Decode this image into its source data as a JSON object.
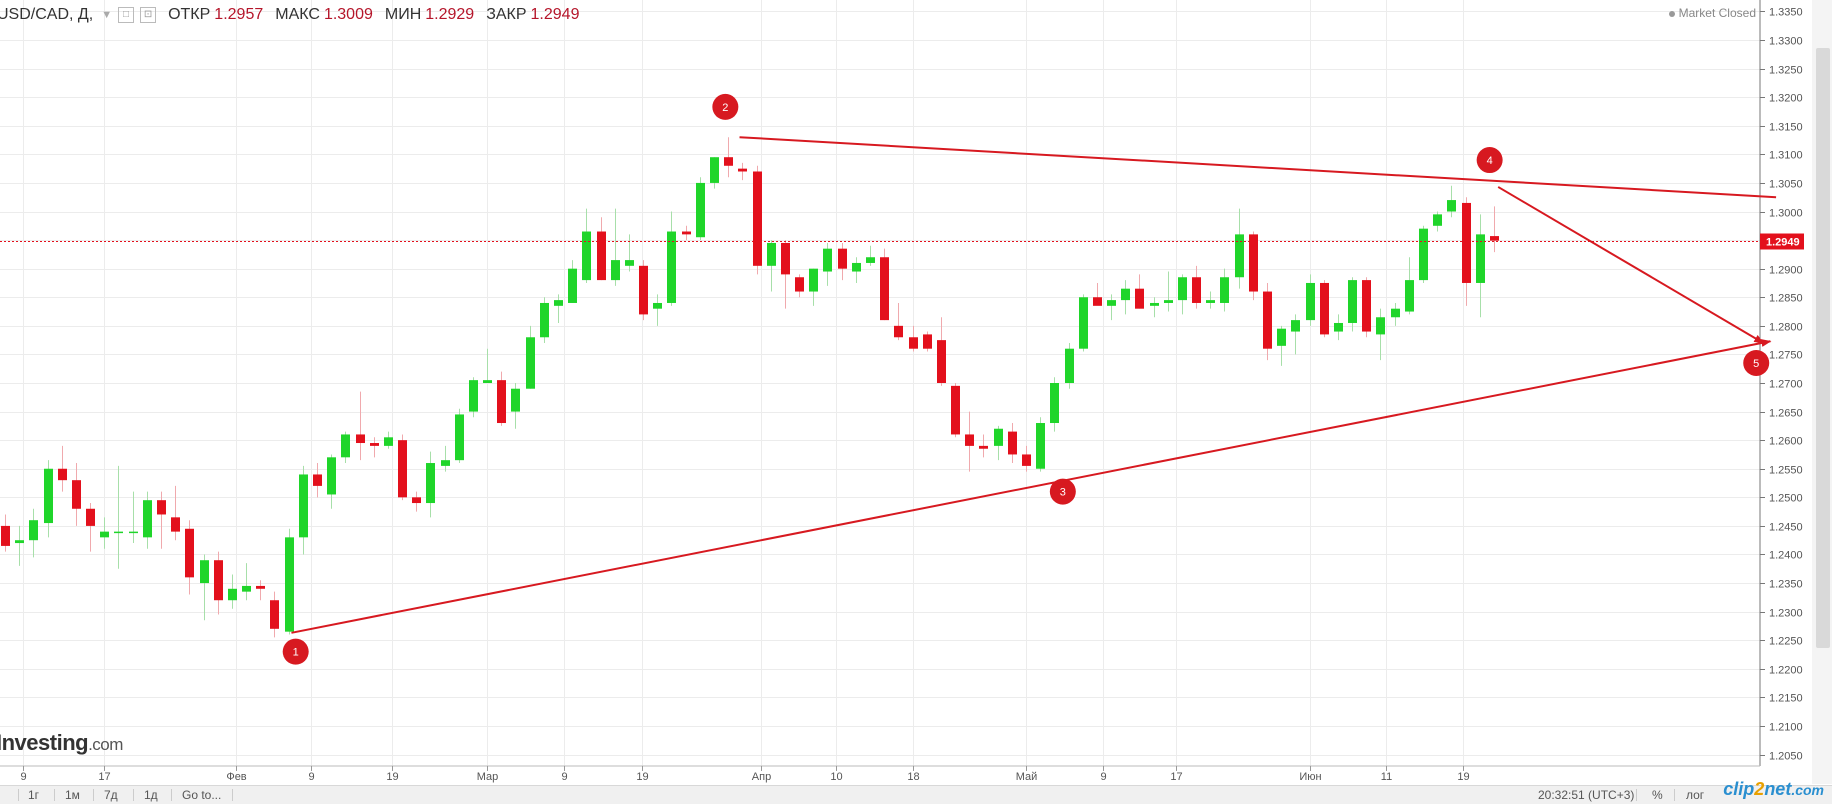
{
  "header": {
    "symbol": "USD/CAD, Д,",
    "open_label": "ОТКР",
    "open": "1.2957",
    "high_label": "МАКС",
    "high": "1.3009",
    "low_label": "МИН",
    "low": "1.2929",
    "close_label": "ЗАКР",
    "close": "1.2949",
    "market_status": "Market Closed"
  },
  "brand": {
    "name": "Investing",
    "domain": ".com"
  },
  "bottom_bar": {
    "timeframes": [
      "1г",
      "1м",
      "7д",
      "1д"
    ],
    "goto": "Go to...",
    "clock": "20:32:51 (UTC+3)",
    "percent": "%",
    "log": "лог"
  },
  "watermark": {
    "a": "clip",
    "b": "2",
    "c": "net",
    "d": ".com"
  },
  "colors": {
    "up": "#1fd52a",
    "down": "#e3101c",
    "annotation": "#d71920",
    "grid": "#ececec",
    "last_price": "#e3101c"
  },
  "chart_data": {
    "type": "candlestick",
    "title": "USD/CAD, Д,",
    "y_ticks": [
      "1.2050",
      "1.2100",
      "1.2150",
      "1.2200",
      "1.2250",
      "1.2300",
      "1.2350",
      "1.2400",
      "1.2450",
      "1.2500",
      "1.2550",
      "1.2600",
      "1.2650",
      "1.2700",
      "1.2750",
      "1.2800",
      "1.2850",
      "1.2900",
      "1.2950",
      "1.3000",
      "1.3050",
      "1.3100",
      "1.3150",
      "1.3200",
      "1.3250",
      "1.3300",
      "1.3350"
    ],
    "ylim": [
      1.203,
      1.337
    ],
    "x_ticks": [
      "9",
      "17",
      "Фев",
      "9",
      "19",
      "Мар",
      "9",
      "19",
      "Апр",
      "10",
      "18",
      "Май",
      "9",
      "17",
      "Июн",
      "11",
      "19"
    ],
    "last_price": 1.2949,
    "last_price_label": "1.2949",
    "candles": [
      {
        "o": 1.245,
        "h": 1.247,
        "l": 1.2405,
        "c": 1.2415
      },
      {
        "o": 1.242,
        "h": 1.245,
        "l": 1.238,
        "c": 1.2425
      },
      {
        "o": 1.2425,
        "h": 1.248,
        "l": 1.2395,
        "c": 1.246
      },
      {
        "o": 1.2455,
        "h": 1.2565,
        "l": 1.243,
        "c": 1.255
      },
      {
        "o": 1.255,
        "h": 1.259,
        "l": 1.251,
        "c": 1.253
      },
      {
        "o": 1.253,
        "h": 1.256,
        "l": 1.245,
        "c": 1.248
      },
      {
        "o": 1.248,
        "h": 1.249,
        "l": 1.2405,
        "c": 1.245
      },
      {
        "o": 1.243,
        "h": 1.2465,
        "l": 1.241,
        "c": 1.244
      },
      {
        "o": 1.244,
        "h": 1.2555,
        "l": 1.2375,
        "c": 1.244
      },
      {
        "o": 1.244,
        "h": 1.251,
        "l": 1.242,
        "c": 1.244
      },
      {
        "o": 1.243,
        "h": 1.251,
        "l": 1.241,
        "c": 1.2495
      },
      {
        "o": 1.2495,
        "h": 1.251,
        "l": 1.241,
        "c": 1.247
      },
      {
        "o": 1.2465,
        "h": 1.252,
        "l": 1.2425,
        "c": 1.244
      },
      {
        "o": 1.2445,
        "h": 1.246,
        "l": 1.233,
        "c": 1.236
      },
      {
        "o": 1.235,
        "h": 1.24,
        "l": 1.2285,
        "c": 1.239
      },
      {
        "o": 1.239,
        "h": 1.2405,
        "l": 1.2295,
        "c": 1.232
      },
      {
        "o": 1.232,
        "h": 1.2365,
        "l": 1.2305,
        "c": 1.234
      },
      {
        "o": 1.2335,
        "h": 1.2385,
        "l": 1.232,
        "c": 1.2345
      },
      {
        "o": 1.2345,
        "h": 1.2355,
        "l": 1.232,
        "c": 1.234
      },
      {
        "o": 1.232,
        "h": 1.2335,
        "l": 1.2255,
        "c": 1.227
      },
      {
        "o": 1.2265,
        "h": 1.2445,
        "l": 1.226,
        "c": 1.243
      },
      {
        "o": 1.243,
        "h": 1.2555,
        "l": 1.24,
        "c": 1.254
      },
      {
        "o": 1.254,
        "h": 1.256,
        "l": 1.25,
        "c": 1.252
      },
      {
        "o": 1.2505,
        "h": 1.2575,
        "l": 1.248,
        "c": 1.257
      },
      {
        "o": 1.257,
        "h": 1.2615,
        "l": 1.256,
        "c": 1.261
      },
      {
        "o": 1.261,
        "h": 1.2685,
        "l": 1.2565,
        "c": 1.2595
      },
      {
        "o": 1.2595,
        "h": 1.2605,
        "l": 1.257,
        "c": 1.259
      },
      {
        "o": 1.259,
        "h": 1.2615,
        "l": 1.2585,
        "c": 1.2605
      },
      {
        "o": 1.26,
        "h": 1.261,
        "l": 1.2495,
        "c": 1.25
      },
      {
        "o": 1.25,
        "h": 1.251,
        "l": 1.2475,
        "c": 1.249
      },
      {
        "o": 1.249,
        "h": 1.258,
        "l": 1.2465,
        "c": 1.256
      },
      {
        "o": 1.2555,
        "h": 1.259,
        "l": 1.2545,
        "c": 1.2565
      },
      {
        "o": 1.2565,
        "h": 1.2655,
        "l": 1.256,
        "c": 1.2645
      },
      {
        "o": 1.265,
        "h": 1.271,
        "l": 1.264,
        "c": 1.2705
      },
      {
        "o": 1.27,
        "h": 1.276,
        "l": 1.27,
        "c": 1.2705
      },
      {
        "o": 1.2705,
        "h": 1.272,
        "l": 1.2625,
        "c": 1.263
      },
      {
        "o": 1.265,
        "h": 1.27,
        "l": 1.262,
        "c": 1.269
      },
      {
        "o": 1.269,
        "h": 1.28,
        "l": 1.269,
        "c": 1.278
      },
      {
        "o": 1.278,
        "h": 1.285,
        "l": 1.277,
        "c": 1.284
      },
      {
        "o": 1.2835,
        "h": 1.2855,
        "l": 1.2805,
        "c": 1.2845
      },
      {
        "o": 1.284,
        "h": 1.2915,
        "l": 1.284,
        "c": 1.29
      },
      {
        "o": 1.288,
        "h": 1.3005,
        "l": 1.2875,
        "c": 1.2965
      },
      {
        "o": 1.2965,
        "h": 1.299,
        "l": 1.288,
        "c": 1.288
      },
      {
        "o": 1.288,
        "h": 1.3005,
        "l": 1.287,
        "c": 1.2915
      },
      {
        "o": 1.2905,
        "h": 1.296,
        "l": 1.2895,
        "c": 1.2915
      },
      {
        "o": 1.2905,
        "h": 1.2915,
        "l": 1.281,
        "c": 1.282
      },
      {
        "o": 1.283,
        "h": 1.2855,
        "l": 1.28,
        "c": 1.284
      },
      {
        "o": 1.284,
        "h": 1.3,
        "l": 1.2835,
        "c": 1.2965
      },
      {
        "o": 1.2965,
        "h": 1.2975,
        "l": 1.295,
        "c": 1.296
      },
      {
        "o": 1.2955,
        "h": 1.306,
        "l": 1.295,
        "c": 1.305
      },
      {
        "o": 1.305,
        "h": 1.3095,
        "l": 1.304,
        "c": 1.3095
      },
      {
        "o": 1.3095,
        "h": 1.313,
        "l": 1.306,
        "c": 1.308
      },
      {
        "o": 1.3075,
        "h": 1.3085,
        "l": 1.3055,
        "c": 1.307
      },
      {
        "o": 1.307,
        "h": 1.308,
        "l": 1.289,
        "c": 1.2905
      },
      {
        "o": 1.2905,
        "h": 1.295,
        "l": 1.286,
        "c": 1.2945
      },
      {
        "o": 1.2945,
        "h": 1.295,
        "l": 1.283,
        "c": 1.289
      },
      {
        "o": 1.2885,
        "h": 1.289,
        "l": 1.285,
        "c": 1.286
      },
      {
        "o": 1.286,
        "h": 1.29,
        "l": 1.2835,
        "c": 1.29
      },
      {
        "o": 1.2895,
        "h": 1.2945,
        "l": 1.287,
        "c": 1.2935
      },
      {
        "o": 1.2935,
        "h": 1.2945,
        "l": 1.288,
        "c": 1.29
      },
      {
        "o": 1.2895,
        "h": 1.292,
        "l": 1.2875,
        "c": 1.291
      },
      {
        "o": 1.291,
        "h": 1.294,
        "l": 1.2905,
        "c": 1.292
      },
      {
        "o": 1.292,
        "h": 1.2935,
        "l": 1.281,
        "c": 1.281
      },
      {
        "o": 1.28,
        "h": 1.284,
        "l": 1.2775,
        "c": 1.278
      },
      {
        "o": 1.278,
        "h": 1.28,
        "l": 1.2755,
        "c": 1.276
      },
      {
        "o": 1.2785,
        "h": 1.279,
        "l": 1.2755,
        "c": 1.276
      },
      {
        "o": 1.2775,
        "h": 1.2815,
        "l": 1.2695,
        "c": 1.27
      },
      {
        "o": 1.2695,
        "h": 1.27,
        "l": 1.2605,
        "c": 1.261
      },
      {
        "o": 1.261,
        "h": 1.265,
        "l": 1.2545,
        "c": 1.259
      },
      {
        "o": 1.259,
        "h": 1.261,
        "l": 1.257,
        "c": 1.2585
      },
      {
        "o": 1.259,
        "h": 1.2625,
        "l": 1.2565,
        "c": 1.262
      },
      {
        "o": 1.2615,
        "h": 1.263,
        "l": 1.256,
        "c": 1.2575
      },
      {
        "o": 1.2575,
        "h": 1.259,
        "l": 1.2545,
        "c": 1.2555
      },
      {
        "o": 1.255,
        "h": 1.264,
        "l": 1.2545,
        "c": 1.263
      },
      {
        "o": 1.263,
        "h": 1.271,
        "l": 1.2615,
        "c": 1.27
      },
      {
        "o": 1.27,
        "h": 1.277,
        "l": 1.269,
        "c": 1.276
      },
      {
        "o": 1.276,
        "h": 1.2855,
        "l": 1.2755,
        "c": 1.285
      },
      {
        "o": 1.285,
        "h": 1.2875,
        "l": 1.284,
        "c": 1.2835
      },
      {
        "o": 1.2835,
        "h": 1.2855,
        "l": 1.281,
        "c": 1.2845
      },
      {
        "o": 1.2845,
        "h": 1.288,
        "l": 1.282,
        "c": 1.2865
      },
      {
        "o": 1.2865,
        "h": 1.289,
        "l": 1.283,
        "c": 1.283
      },
      {
        "o": 1.2835,
        "h": 1.285,
        "l": 1.2815,
        "c": 1.284
      },
      {
        "o": 1.284,
        "h": 1.2895,
        "l": 1.2825,
        "c": 1.2845
      },
      {
        "o": 1.2845,
        "h": 1.289,
        "l": 1.282,
        "c": 1.2885
      },
      {
        "o": 1.2885,
        "h": 1.2905,
        "l": 1.283,
        "c": 1.284
      },
      {
        "o": 1.284,
        "h": 1.286,
        "l": 1.283,
        "c": 1.2845
      },
      {
        "o": 1.284,
        "h": 1.29,
        "l": 1.2825,
        "c": 1.2885
      },
      {
        "o": 1.2885,
        "h": 1.3005,
        "l": 1.2865,
        "c": 1.296
      },
      {
        "o": 1.296,
        "h": 1.2965,
        "l": 1.2845,
        "c": 1.286
      },
      {
        "o": 1.286,
        "h": 1.2875,
        "l": 1.274,
        "c": 1.276
      },
      {
        "o": 1.2765,
        "h": 1.28,
        "l": 1.273,
        "c": 1.2795
      },
      {
        "o": 1.279,
        "h": 1.282,
        "l": 1.275,
        "c": 1.281
      },
      {
        "o": 1.281,
        "h": 1.289,
        "l": 1.28,
        "c": 1.2875
      },
      {
        "o": 1.2875,
        "h": 1.288,
        "l": 1.278,
        "c": 1.2785
      },
      {
        "o": 1.279,
        "h": 1.282,
        "l": 1.2775,
        "c": 1.2805
      },
      {
        "o": 1.2805,
        "h": 1.2885,
        "l": 1.279,
        "c": 1.288
      },
      {
        "o": 1.288,
        "h": 1.2885,
        "l": 1.278,
        "c": 1.279
      },
      {
        "o": 1.2785,
        "h": 1.283,
        "l": 1.274,
        "c": 1.2815
      },
      {
        "o": 1.2815,
        "h": 1.284,
        "l": 1.28,
        "c": 1.283
      },
      {
        "o": 1.2825,
        "h": 1.292,
        "l": 1.282,
        "c": 1.288
      },
      {
        "o": 1.288,
        "h": 1.2975,
        "l": 1.2875,
        "c": 1.297
      },
      {
        "o": 1.2975,
        "h": 1.3,
        "l": 1.2965,
        "c": 1.2995
      },
      {
        "o": 1.3,
        "h": 1.3045,
        "l": 1.299,
        "c": 1.302
      },
      {
        "o": 1.3015,
        "h": 1.3025,
        "l": 1.2835,
        "c": 1.2875
      },
      {
        "o": 1.2875,
        "h": 1.2995,
        "l": 1.2815,
        "c": 1.296
      },
      {
        "o": 1.2957,
        "h": 1.3009,
        "l": 1.2929,
        "c": 1.2949
      }
    ],
    "annotations": [
      {
        "label": "1",
        "idx": 20.5,
        "price": 1.223
      },
      {
        "label": "2",
        "idx": 50.8,
        "price": 1.3183
      },
      {
        "label": "3",
        "idx": 74.6,
        "price": 1.251
      },
      {
        "label": "4",
        "idx": 104.7,
        "price": 1.309
      },
      {
        "label": "5",
        "idx": 123.5,
        "price": 1.2735
      }
    ],
    "trendlines": [
      {
        "from": {
          "idx": 20.2,
          "price": 1.2263
        },
        "to": {
          "idx": 124.5,
          "price": 1.2773
        },
        "arrow": true
      },
      {
        "from": {
          "idx": 51.8,
          "price": 1.313
        },
        "to": {
          "idx": 124.9,
          "price": 1.3025
        },
        "arrow": false
      },
      {
        "from": {
          "idx": 105.3,
          "price": 1.3043
        },
        "to": {
          "idx": 124.0,
          "price": 1.277
        },
        "arrow": true
      }
    ]
  }
}
